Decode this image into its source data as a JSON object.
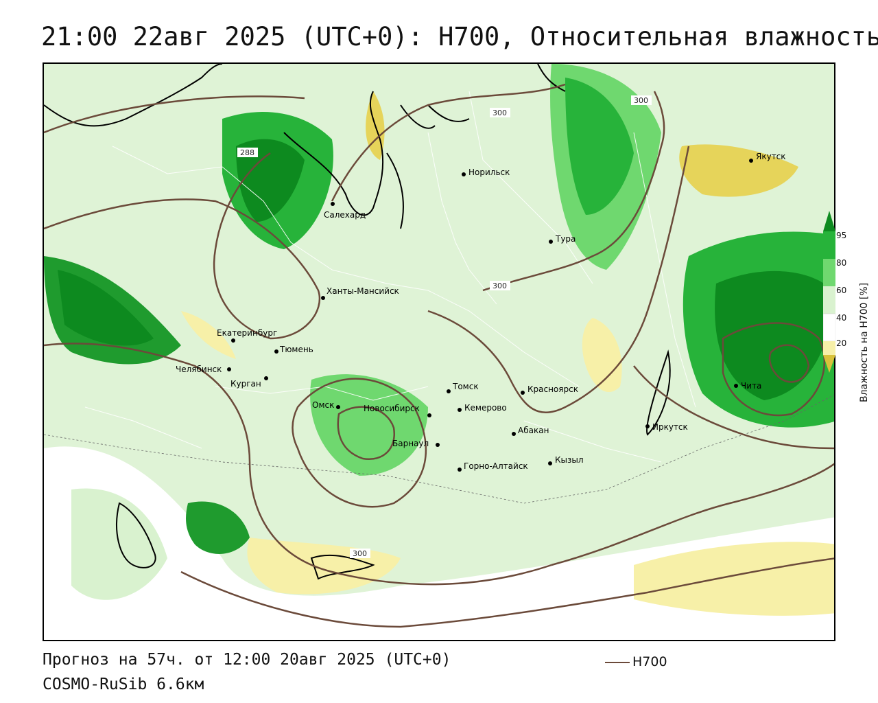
{
  "title": "21:00 22авг 2025 (UTC+0): H700, Относительная влажность",
  "footer": {
    "forecast": "Прогноз на 57ч. от 12:00 20авг 2025 (UTC+0)",
    "model": "COSMO-RuSib 6.6км"
  },
  "legend": {
    "line_label": "H700",
    "line_color": "#6b4a3a"
  },
  "colorbar": {
    "title": "Влажность на H700 [%]",
    "ticks": [
      "95",
      "80",
      "60",
      "40",
      "20"
    ],
    "colors": {
      "very_wet": "#0d8a1f",
      "wet": "#27b33a",
      "moist": "#6fd86f",
      "mild": "#d9f2cf",
      "neutral": "#ffffff",
      "dry": "#f7f0a8",
      "very_dry": "#d9c23a"
    }
  },
  "cities": [
    {
      "name": "Якутск"
    },
    {
      "name": "Норильск"
    },
    {
      "name": "Салехард"
    },
    {
      "name": "Тура"
    },
    {
      "name": "Ханты-Мансийск"
    },
    {
      "name": "Екатеринбург"
    },
    {
      "name": "Тюмень"
    },
    {
      "name": "Челябинск"
    },
    {
      "name": "Курган"
    },
    {
      "name": "Омск"
    },
    {
      "name": "Новосибирск"
    },
    {
      "name": "Томск"
    },
    {
      "name": "Кемерово"
    },
    {
      "name": "Красноярск"
    },
    {
      "name": "Барнаул"
    },
    {
      "name": "Абакан"
    },
    {
      "name": "Горно-Алтайск"
    },
    {
      "name": "Кызыл"
    },
    {
      "name": "Иркутск"
    },
    {
      "name": "Чита"
    }
  ],
  "isoline_labels": [
    "288",
    "300",
    "300",
    "300",
    "300"
  ]
}
